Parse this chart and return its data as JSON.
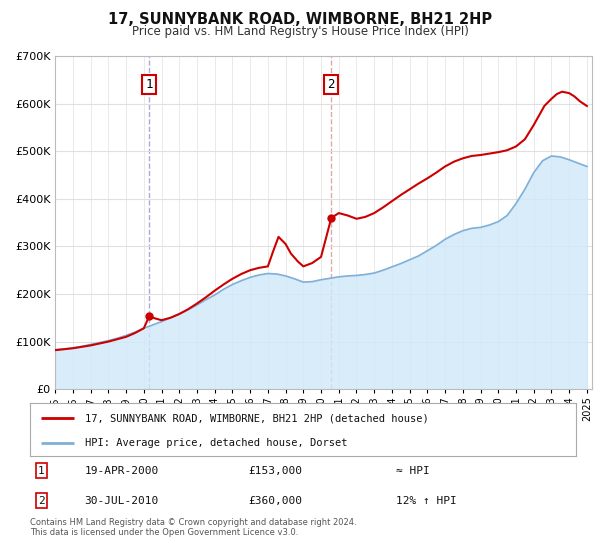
{
  "title": "17, SUNNYBANK ROAD, WIMBORNE, BH21 2HP",
  "subtitle": "Price paid vs. HM Land Registry's House Price Index (HPI)",
  "ylim": [
    0,
    700000
  ],
  "yticks": [
    0,
    100000,
    200000,
    300000,
    400000,
    500000,
    600000,
    700000
  ],
  "bg_color": "#ffffff",
  "plot_bg_color": "#ffffff",
  "grid_color": "#e0e0e0",
  "sale1_date": 2000.3,
  "sale1_price": 153000,
  "sale2_date": 2010.58,
  "sale2_price": 360000,
  "sale1_vline_color": "#aaaadd",
  "sale2_vline_color": "#ddaaaa",
  "legend_line1_color": "#cc0000",
  "legend_line2_color": "#7fb0d8",
  "hpi_fill_color": "#d0e8f8",
  "price_line_color": "#cc0000",
  "hpi_line_color": "#7fb0d8",
  "footer_text": "Contains HM Land Registry data © Crown copyright and database right 2024.\nThis data is licensed under the Open Government Licence v3.0.",
  "transaction1_text": "19-APR-2000",
  "transaction1_price": "£153,000",
  "transaction1_hpi": "≈ HPI",
  "transaction2_text": "30-JUL-2010",
  "transaction2_price": "£360,000",
  "transaction2_hpi": "12% ↑ HPI",
  "hpi_years": [
    1995,
    1995.5,
    1996,
    1996.5,
    1997,
    1997.5,
    1998,
    1998.5,
    1999,
    1999.5,
    2000,
    2000.5,
    2001,
    2001.5,
    2002,
    2002.5,
    2003,
    2003.5,
    2004,
    2004.5,
    2005,
    2005.5,
    2006,
    2006.5,
    2007,
    2007.5,
    2008,
    2008.5,
    2009,
    2009.5,
    2010,
    2010.5,
    2011,
    2011.5,
    2012,
    2012.5,
    2013,
    2013.5,
    2014,
    2014.5,
    2015,
    2015.5,
    2016,
    2016.5,
    2017,
    2017.5,
    2018,
    2018.5,
    2019,
    2019.5,
    2020,
    2020.5,
    2021,
    2021.5,
    2022,
    2022.5,
    2023,
    2023.5,
    2024,
    2024.5,
    2025
  ],
  "hpi_values": [
    83000,
    84500,
    87000,
    90000,
    94000,
    98000,
    102000,
    107000,
    113000,
    120000,
    128000,
    135000,
    142000,
    150000,
    158000,
    167000,
    177000,
    188000,
    198000,
    210000,
    220000,
    228000,
    235000,
    240000,
    243000,
    242000,
    238000,
    232000,
    225000,
    226000,
    230000,
    233000,
    236000,
    238000,
    239000,
    241000,
    244000,
    250000,
    257000,
    264000,
    272000,
    280000,
    291000,
    302000,
    315000,
    325000,
    333000,
    338000,
    340000,
    345000,
    352000,
    365000,
    390000,
    420000,
    455000,
    480000,
    490000,
    488000,
    482000,
    475000,
    468000
  ],
  "price_years": [
    1995,
    1995.5,
    1996,
    1996.5,
    1997,
    1997.5,
    1998,
    1998.5,
    1999,
    1999.5,
    2000.0,
    2000.3,
    2000.7,
    2001,
    2001.5,
    2002,
    2002.5,
    2003,
    2003.5,
    2004,
    2004.5,
    2005,
    2005.5,
    2006,
    2006.5,
    2007,
    2007.3,
    2007.6,
    2008,
    2008.3,
    2008.7,
    2009,
    2009.5,
    2010.0,
    2010.58,
    2011,
    2011.5,
    2012,
    2012.5,
    2013,
    2013.5,
    2014,
    2014.5,
    2015,
    2015.5,
    2016,
    2016.5,
    2017,
    2017.5,
    2018,
    2018.5,
    2019,
    2019.5,
    2020,
    2020.5,
    2021,
    2021.5,
    2022,
    2022.3,
    2022.6,
    2023,
    2023.3,
    2023.6,
    2024,
    2024.3,
    2024.6,
    2025
  ],
  "price_values": [
    82000,
    84000,
    86000,
    89000,
    92000,
    96000,
    100000,
    105000,
    110000,
    118000,
    128000,
    153000,
    148000,
    145000,
    150000,
    158000,
    168000,
    180000,
    193000,
    207000,
    220000,
    232000,
    242000,
    250000,
    255000,
    258000,
    290000,
    320000,
    305000,
    285000,
    268000,
    258000,
    265000,
    278000,
    360000,
    370000,
    365000,
    358000,
    362000,
    370000,
    382000,
    395000,
    408000,
    420000,
    432000,
    443000,
    455000,
    468000,
    478000,
    485000,
    490000,
    492000,
    495000,
    498000,
    502000,
    510000,
    525000,
    555000,
    575000,
    595000,
    610000,
    620000,
    625000,
    622000,
    615000,
    605000,
    595000
  ]
}
